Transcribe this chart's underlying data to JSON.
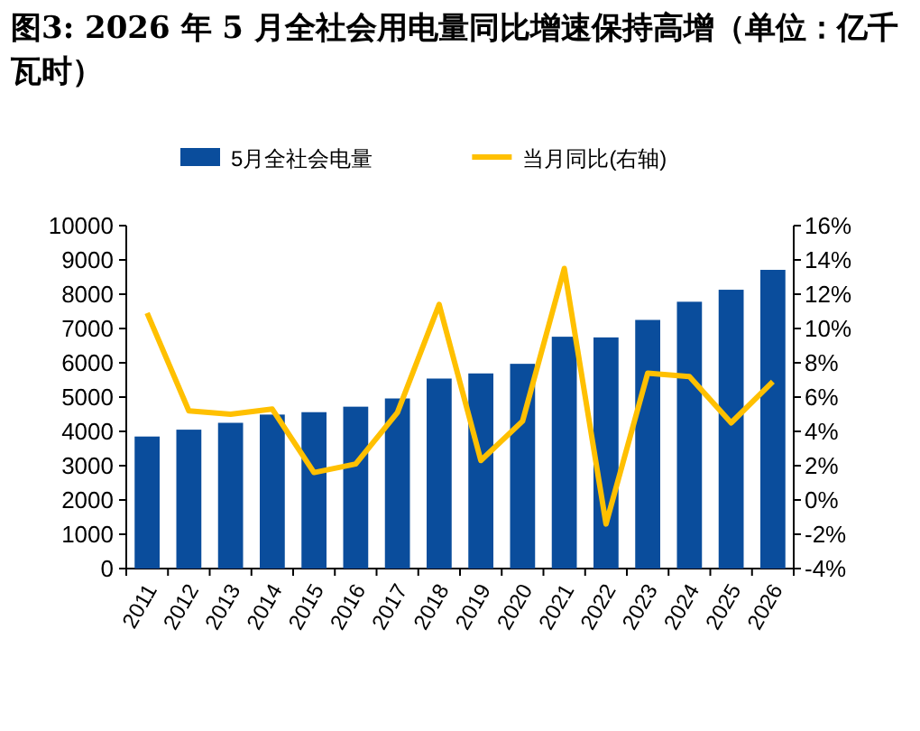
{
  "chart_data": {
    "type": "bar",
    "title": "图3: 2026 年 5 月全社会用电量同比增速保持高增（单位：亿千瓦时）",
    "categories": [
      "2011",
      "2012",
      "2013",
      "2014",
      "2015",
      "2016",
      "2017",
      "2018",
      "2019",
      "2020",
      "2021",
      "2022",
      "2023",
      "2024",
      "2025",
      "2026"
    ],
    "series": [
      {
        "name": "5月全社会电量",
        "color": "#0a4d9c",
        "values": [
          3850,
          4050,
          4250,
          4490,
          4560,
          4720,
          4960,
          5540,
          5690,
          5970,
          6760,
          6740,
          7250,
          7780,
          8130,
          8710
        ]
      },
      {
        "name": "当月同比(右轴)",
        "type": "line",
        "axis": "y2",
        "color": "#ffc000",
        "values": [
          10.9,
          5.2,
          5.0,
          5.3,
          1.6,
          2.1,
          5.1,
          11.4,
          2.3,
          4.6,
          13.5,
          -1.4,
          7.4,
          7.2,
          4.5,
          6.9
        ]
      }
    ],
    "ylim": [
      0,
      10000
    ],
    "yticks": [
      0,
      1000,
      2000,
      3000,
      4000,
      5000,
      6000,
      7000,
      8000,
      9000,
      10000
    ],
    "y2lim": [
      -4,
      16
    ],
    "y2ticks": [
      {
        "value": -4,
        "label": "-4%"
      },
      {
        "value": -2,
        "label": "-2%"
      },
      {
        "value": 0,
        "label": "0%"
      },
      {
        "value": 2,
        "label": "2%"
      },
      {
        "value": 4,
        "label": "4%"
      },
      {
        "value": 6,
        "label": "6%"
      },
      {
        "value": 8,
        "label": "8%"
      },
      {
        "value": 10,
        "label": "10%"
      },
      {
        "value": 12,
        "label": "12%"
      },
      {
        "value": 14,
        "label": "14%"
      },
      {
        "value": 16,
        "label": "16%"
      }
    ],
    "legend": "top",
    "grid": false
  }
}
